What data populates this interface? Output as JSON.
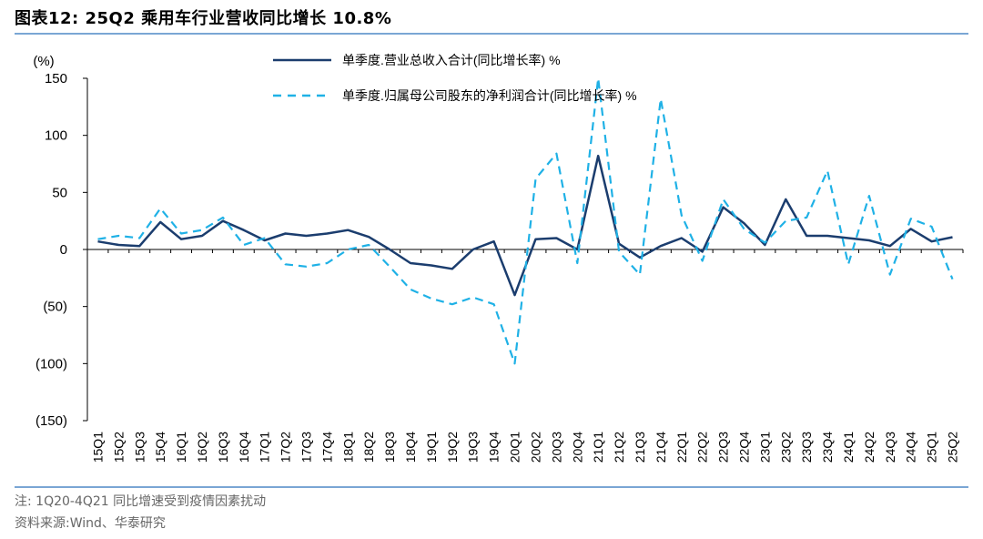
{
  "header": {
    "title": "图表12:  25Q2 乘用车行业营收同比增长 10.8%"
  },
  "footer": {
    "note": "注:  1Q20-4Q21 同比增速受到疫情因素扰动",
    "source": "资料来源:Wind、华泰研究"
  },
  "colors": {
    "revenue": "#1b3d6e",
    "profit": "#1fb1e6",
    "rule": "#7aa6d4"
  },
  "chart_data": {
    "type": "line",
    "yunit": "(%)",
    "ylim": [
      -150,
      150
    ],
    "yticks": [
      150,
      100,
      50,
      0,
      -50,
      -100,
      -150
    ],
    "ytick_labels": [
      "150",
      "100",
      "50",
      "0",
      "(50)",
      "(100)",
      "(150)"
    ],
    "legend_position": "top-right",
    "categories": [
      "15Q1",
      "15Q2",
      "15Q3",
      "15Q4",
      "16Q1",
      "16Q2",
      "16Q3",
      "16Q4",
      "17Q1",
      "17Q2",
      "17Q3",
      "17Q4",
      "18Q1",
      "18Q2",
      "18Q3",
      "18Q4",
      "19Q1",
      "19Q2",
      "19Q3",
      "19Q4",
      "20Q1",
      "20Q2",
      "20Q3",
      "20Q4",
      "21Q1",
      "21Q2",
      "21Q3",
      "21Q4",
      "22Q1",
      "22Q2",
      "22Q3",
      "22Q4",
      "23Q1",
      "23Q2",
      "23Q3",
      "23Q4",
      "24Q1",
      "24Q2",
      "24Q3",
      "24Q4",
      "25Q1",
      "25Q2"
    ],
    "series": [
      {
        "name": "单季度.营业总收入合计(同比增长率) %",
        "style": "solid",
        "values": [
          7,
          4,
          3,
          24,
          9,
          12,
          25,
          17,
          8,
          14,
          12,
          14,
          17,
          11,
          0,
          -12,
          -14,
          -17,
          0,
          7,
          -40,
          9,
          10,
          0,
          82,
          5,
          -7,
          3,
          10,
          -2,
          37,
          23,
          4,
          44,
          12,
          12,
          10,
          8,
          3,
          18,
          7,
          10.8
        ]
      },
      {
        "name": "单季度.归属母公司股东的净利润合计(同比增长率) %",
        "style": "dashed",
        "values": [
          9,
          12,
          10,
          36,
          14,
          17,
          28,
          4,
          10,
          -13,
          -15,
          -12,
          0,
          4,
          -15,
          -35,
          -43,
          -48,
          -42,
          -48,
          -100,
          62,
          84,
          -12,
          160,
          -2,
          -22,
          132,
          30,
          -10,
          44,
          18,
          6,
          25,
          28,
          69,
          -13,
          47,
          -22,
          27,
          20,
          -26
        ]
      }
    ]
  }
}
